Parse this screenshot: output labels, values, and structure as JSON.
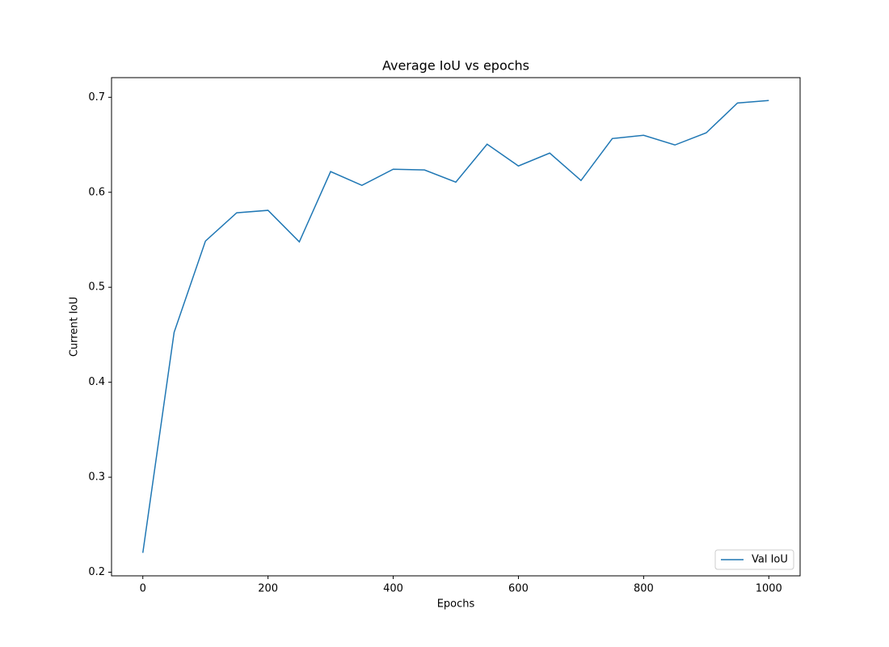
{
  "chart_data": {
    "type": "line",
    "title": "Average IoU vs epochs",
    "x_label": "Epochs",
    "y_label": "Current IoU",
    "x": [
      0,
      50,
      100,
      150,
      200,
      250,
      300,
      350,
      400,
      450,
      500,
      550,
      600,
      650,
      700,
      750,
      800,
      850,
      900,
      950,
      1000
    ],
    "series": [
      {
        "name": "Val IoU",
        "color": "#1f77b4",
        "values": [
          0.2204,
          0.4526,
          0.5486,
          0.5784,
          0.581,
          0.5478,
          0.6218,
          0.6073,
          0.6243,
          0.6235,
          0.6107,
          0.6507,
          0.6277,
          0.6413,
          0.6124,
          0.6566,
          0.66,
          0.6498,
          0.6626,
          0.694,
          0.6966
        ]
      }
    ],
    "xlim": [
      -50,
      1050
    ],
    "xticks": [
      0,
      200,
      400,
      600,
      800,
      1000
    ],
    "ylim": [
      0.1962,
      0.7207
    ],
    "yticks": [
      0.2,
      0.3,
      0.4,
      0.5,
      0.6,
      0.7
    ],
    "grid": false,
    "legend_position": "lower-right"
  }
}
